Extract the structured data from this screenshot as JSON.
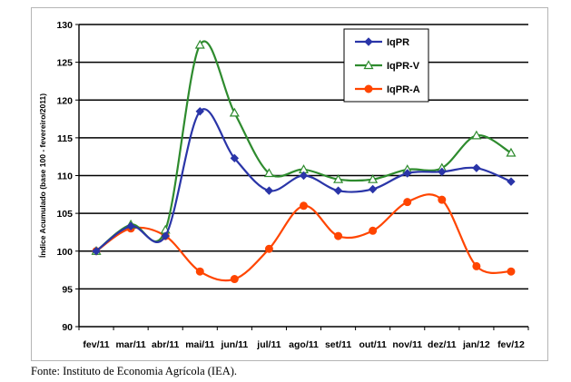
{
  "chart_data": {
    "type": "line",
    "title": "",
    "xlabel": "",
    "ylabel": "Índice Acumulado (base 100 - fevereiro/2011)",
    "ylim": [
      90,
      130
    ],
    "yticks": [
      90,
      95,
      100,
      105,
      110,
      115,
      120,
      125,
      130
    ],
    "grid": "horizontal",
    "legend_position": "top-right",
    "categories": [
      "fev/11",
      "mar/11",
      "abr/11",
      "mai/11",
      "jun/11",
      "jul/11",
      "ago/11",
      "set/11",
      "out/11",
      "nov/11",
      "dez/11",
      "jan/12",
      "fev/12"
    ],
    "series": [
      {
        "name": "IqPR",
        "color": "#2a35a8",
        "marker": "diamond",
        "values": [
          100,
          103.3,
          102.0,
          118.5,
          112.3,
          108.0,
          110.0,
          108.0,
          108.2,
          110.3,
          110.5,
          111.0,
          109.2
        ]
      },
      {
        "name": "IqPR-V",
        "color": "#2e8b2e",
        "marker": "triangle",
        "values": [
          100,
          103.5,
          102.8,
          127.3,
          118.3,
          110.3,
          110.8,
          109.5,
          109.5,
          110.8,
          111.0,
          115.3,
          113.0
        ]
      },
      {
        "name": "IqPR-A",
        "color": "#ff4500",
        "marker": "circle",
        "values": [
          100,
          103.0,
          102.0,
          97.3,
          96.3,
          100.3,
          106.0,
          102.0,
          102.7,
          106.5,
          106.8,
          98.0,
          97.3
        ]
      }
    ]
  },
  "source": "Fonte: Instituto de Economia Agrícola (IEA)."
}
